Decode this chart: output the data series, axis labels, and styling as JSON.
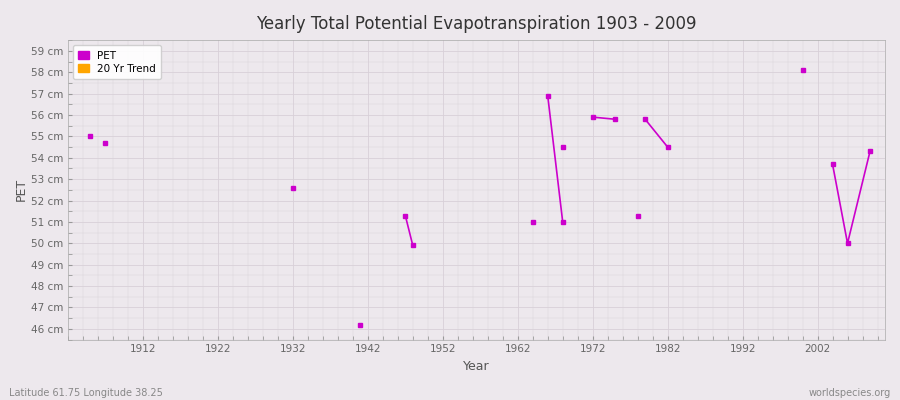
{
  "title": "Yearly Total Potential Evapotranspiration 1903 - 2009",
  "xlabel": "Year",
  "ylabel": "PET",
  "subtitle_left": "Latitude 61.75 Longitude 38.25",
  "subtitle_right": "worldspecies.org",
  "pet_color": "#CC00CC",
  "trend_color": "#FFA500",
  "background_color": "#EDE8ED",
  "grid_color": "#D8D0D8",
  "ylim": [
    45.5,
    59.5
  ],
  "xlim": [
    1902,
    2011
  ],
  "yticks": [
    46,
    47,
    48,
    49,
    50,
    51,
    52,
    53,
    54,
    55,
    56,
    57,
    58,
    59
  ],
  "xticks": [
    1912,
    1922,
    1932,
    1942,
    1952,
    1962,
    1972,
    1982,
    1992,
    2002
  ],
  "isolated_points": [
    [
      1905,
      55.0
    ],
    [
      1907,
      54.7
    ],
    [
      1932,
      52.6
    ],
    [
      1941,
      46.2
    ],
    [
      1964,
      51.0
    ],
    [
      1968,
      54.5
    ],
    [
      1978,
      51.3
    ],
    [
      2000,
      58.1
    ]
  ],
  "connected_segments": [
    [
      [
        1947,
        51.3
      ],
      [
        1948,
        49.9
      ]
    ],
    [
      [
        1966,
        56.9
      ],
      [
        1968,
        51.0
      ]
    ],
    [
      [
        1972,
        55.9
      ],
      [
        1975,
        55.8
      ]
    ],
    [
      [
        1979,
        55.8
      ],
      [
        1982,
        54.5
      ]
    ],
    [
      [
        2004,
        53.7
      ],
      [
        2006,
        50.0
      ],
      [
        2009,
        54.3
      ]
    ]
  ]
}
